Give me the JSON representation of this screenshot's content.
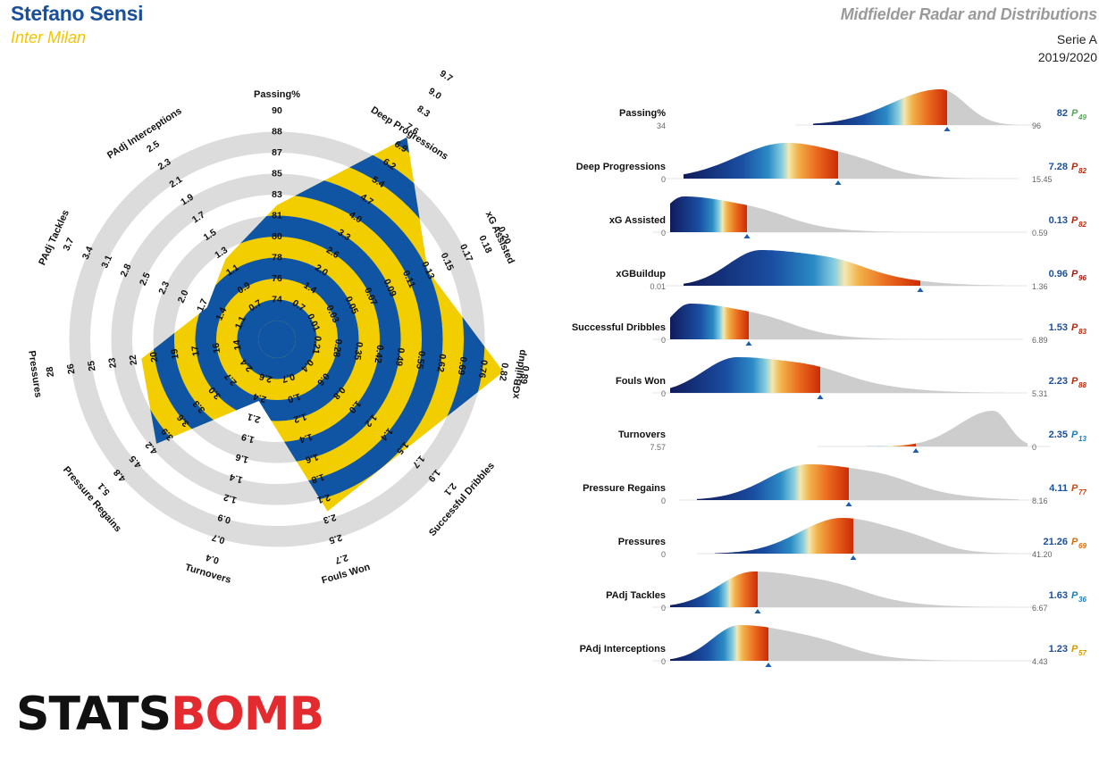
{
  "header": {
    "player": "Stefano Sensi",
    "team": "Inter Milan",
    "title": "Midfielder Radar and Distributions",
    "league": "Serie A",
    "season": "2019/2020"
  },
  "logo": {
    "part1": "STATS",
    "part2": "BOMB"
  },
  "colors": {
    "blue": "#0f55a4",
    "yellow": "#f2cd00",
    "ring_grey": "#dcdcdc",
    "dist_grey": "#cdcdcd",
    "percentile_low": "#1b7db8",
    "percentile_mid": "#e0a000",
    "percentile_high": "#b52a0c"
  },
  "chart_data": [
    {
      "type": "radar",
      "axes": [
        {
          "name": "Passing%",
          "value": 82,
          "ticks": [
            "74",
            "76",
            "78",
            "80",
            "81",
            "83",
            "85",
            "87",
            "88",
            "90"
          ]
        },
        {
          "name": "Deep Progressions",
          "value": 7.28,
          "ticks": [
            "0.7",
            "1.4",
            "2.0",
            "2.6",
            "3.3",
            "4.0",
            "4.7",
            "5.4",
            "6.2",
            "6.9",
            "7.6",
            "8.3",
            "9.0",
            "9.7"
          ]
        },
        {
          "name": "xG Assisted",
          "value": 0.13,
          "ticks": [
            "0.01",
            "0.03",
            "0.05",
            "0.07",
            "0.09",
            "0.11",
            "0.13",
            "0.15",
            "0.17",
            "0.18",
            "0.20"
          ]
        },
        {
          "name": "xGBuildup",
          "value": 0.96,
          "ticks": [
            "0.21",
            "0.28",
            "0.35",
            "0.42",
            "0.49",
            "0.55",
            "0.62",
            "0.69",
            "0.76",
            "0.82",
            "0.89"
          ]
        },
        {
          "name": "Successful Dribbles",
          "value": 1.53,
          "ticks": [
            "0.4",
            "0.6",
            "0.8",
            "1.0",
            "1.2",
            "1.4",
            "1.5",
            "1.7",
            "1.9",
            "2.1"
          ]
        },
        {
          "name": "Fouls Won",
          "value": 2.23,
          "ticks": [
            "0.7",
            "1.0",
            "1.2",
            "1.4",
            "1.6",
            "1.8",
            "2.1",
            "2.3",
            "2.5",
            "2.7"
          ]
        },
        {
          "name": "Turnovers",
          "value": 2.35,
          "ticks": [
            "2.6",
            "2.4",
            "2.1",
            "1.9",
            "1.6",
            "1.4",
            "1.2",
            "0.9",
            "0.7",
            "0.4"
          ]
        },
        {
          "name": "Pressure Regains",
          "value": 4.11,
          "ticks": [
            "2.4",
            "2.7",
            "3.0",
            "3.3",
            "3.6",
            "3.9",
            "4.2",
            "4.5",
            "4.8",
            "5.1"
          ]
        },
        {
          "name": "Pressures",
          "value": 21.26,
          "ticks": [
            "14",
            "16",
            "17",
            "19",
            "20",
            "22",
            "23",
            "25",
            "26",
            "28"
          ]
        },
        {
          "name": "PAdj Tackles",
          "value": 1.63,
          "ticks": [
            "1.1",
            "1.4",
            "1.7",
            "2.0",
            "2.3",
            "2.5",
            "2.8",
            "3.1",
            "3.4",
            "3.7"
          ]
        },
        {
          "name": "PAdj Interceptions",
          "value": 1.23,
          "ticks": [
            "0.7",
            "0.9",
            "1.1",
            "1.3",
            "1.5",
            "1.7",
            "1.9",
            "2.1",
            "2.3",
            "2.5"
          ]
        }
      ]
    },
    {
      "type": "area",
      "rows": [
        {
          "name": "Passing%",
          "min": "34",
          "max": "96",
          "value": "82",
          "pct": "49",
          "pct_color": "#5aa55a",
          "left": 910,
          "right": 1140,
          "marker": 1060,
          "colored": "left",
          "peak": 0.62,
          "width": 0.24,
          "skew": 0.5
        },
        {
          "name": "Deep Progressions",
          "min": "0",
          "max": "15.45",
          "value": "7.28",
          "pct": "82",
          "pct_color": "#b52a0c",
          "left": 765,
          "right": 1115,
          "marker": 938,
          "colored": "left",
          "peak": 0.33,
          "width": 0.16,
          "skew": 1.2
        },
        {
          "name": "xG Assisted",
          "min": "0",
          "max": "0.59",
          "value": "0.13",
          "pct": "82",
          "pct_color": "#b52a0c",
          "left": 750,
          "right": 1125,
          "marker": 836,
          "colored": "left",
          "peak": 0.04,
          "width": 0.06,
          "skew": 3.5
        },
        {
          "name": "xGBuildup",
          "min": "0.01",
          "max": "1.36",
          "value": "0.96",
          "pct": "96",
          "pct_color": "#9e1b10",
          "left": 765,
          "right": 1125,
          "marker": 1030,
          "colored": "left",
          "peak": 0.24,
          "width": 0.1,
          "skew": 2.5
        },
        {
          "name": "Successful Dribbles",
          "min": "0",
          "max": "6.89",
          "value": "1.53",
          "pct": "83",
          "pct_color": "#b52a0c",
          "left": 750,
          "right": 1120,
          "marker": 838,
          "colored": "left",
          "peak": 0.06,
          "width": 0.06,
          "skew": 3.5
        },
        {
          "name": "Fouls Won",
          "min": "0",
          "max": "5.31",
          "value": "2.23",
          "pct": "88",
          "pct_color": "#b52a0c",
          "left": 750,
          "right": 1125,
          "marker": 918,
          "colored": "left",
          "peak": 0.2,
          "width": 0.1,
          "skew": 2.5
        },
        {
          "name": "Turnovers",
          "min": "7.57",
          "max": "0",
          "value": "2.35",
          "pct": "13",
          "pct_color": "#1b7db8",
          "left": 935,
          "right": 1150,
          "marker": 1025,
          "colored": "left",
          "peak": 0.82,
          "width": 0.18,
          "skew": 0.45
        },
        {
          "name": "Pressure Regains",
          "min": "0",
          "max": "8.16",
          "value": "4.11",
          "pct": "77",
          "pct_color": "#c44a15",
          "left": 780,
          "right": 1140,
          "marker": 950,
          "colored": "left",
          "peak": 0.35,
          "width": 0.13,
          "skew": 1.8
        },
        {
          "name": "Pressures",
          "min": "0",
          "max": "41.20",
          "value": "21.26",
          "pct": "69",
          "pct_color": "#d76d0a",
          "left": 800,
          "right": 1140,
          "marker": 955,
          "colored": "left",
          "peak": 0.42,
          "width": 0.14,
          "skew": 1.3
        },
        {
          "name": "PAdj Tackles",
          "min": "0",
          "max": "6.67",
          "value": "1.63",
          "pct": "36",
          "pct_color": "#1b7db8",
          "left": 750,
          "right": 1140,
          "marker": 848,
          "colored": "left",
          "peak": 0.24,
          "width": 0.1,
          "skew": 2.2
        },
        {
          "name": "PAdj Interceptions",
          "min": "0",
          "max": "4.43",
          "value": "1.23",
          "pct": "57",
          "pct_color": "#d89a00",
          "left": 750,
          "right": 1140,
          "marker": 860,
          "colored": "left",
          "peak": 0.2,
          "width": 0.08,
          "skew": 2.5
        }
      ]
    }
  ]
}
